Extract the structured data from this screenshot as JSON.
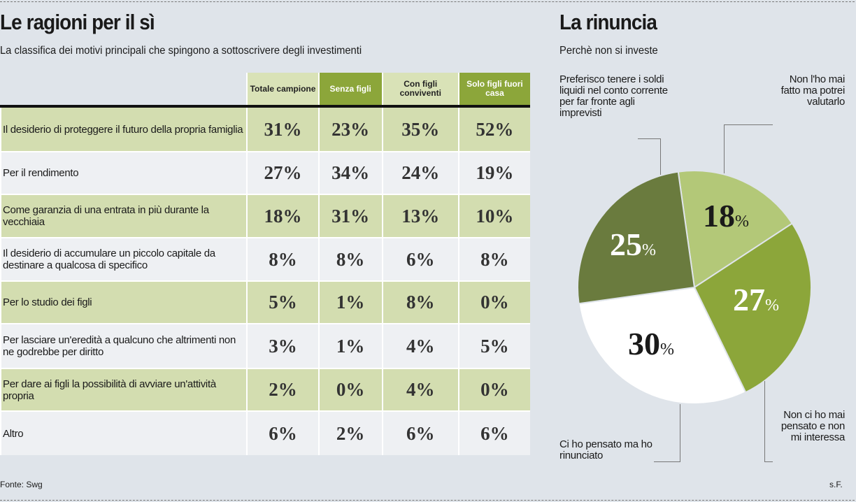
{
  "left": {
    "title": "Le ragioni per il sì",
    "subtitle": "La classifica dei motivi principali che spingono a sottoscrivere degli investimenti"
  },
  "right": {
    "title": "La rinuncia",
    "subtitle": "Perchè non si investe"
  },
  "footer": {
    "source": "Fonte: Swg",
    "credit": "s.F."
  },
  "chart_data": [
    {
      "type": "table",
      "columns": [
        "Totale campione",
        "Senza figli",
        "Con figli conviventi",
        "Solo figli fuori casa"
      ],
      "rows": [
        {
          "label": "Il desiderio di proteggere il futuro della propria famiglia",
          "values": [
            "31%",
            "23%",
            "35%",
            "52%"
          ]
        },
        {
          "label": "Per il rendimento",
          "values": [
            "27%",
            "34%",
            "24%",
            "19%"
          ]
        },
        {
          "label": "Come garanzia di una entrata in più durante la vecchiaia",
          "values": [
            "18%",
            "31%",
            "13%",
            "10%"
          ]
        },
        {
          "label": "Il desiderio di accumulare un piccolo capitale da destinare a qualcosa di specifico",
          "values": [
            "8%",
            "8%",
            "6%",
            "8%"
          ]
        },
        {
          "label": "Per lo studio dei figli",
          "values": [
            "5%",
            "1%",
            "8%",
            "0%"
          ]
        },
        {
          "label": "Per lasciare un'eredità a qualcuno che altrimenti non ne godrebbe per diritto",
          "values": [
            "3%",
            "1%",
            "4%",
            "5%"
          ]
        },
        {
          "label": "Per dare ai figli la possibilità di avviare un'attività propria",
          "values": [
            "2%",
            "0%",
            "4%",
            "0%"
          ]
        },
        {
          "label": "Altro",
          "values": [
            "6%",
            "2%",
            "6%",
            "6%"
          ]
        }
      ]
    },
    {
      "type": "pie",
      "title": "La rinuncia",
      "slices": [
        {
          "label": "Non l'ho mai fatto ma potrei valutarlo",
          "value": 18,
          "display": "18",
          "color": "#b3c878"
        },
        {
          "label": "Non ci ho mai pensato e non mi interessa",
          "value": 27,
          "display": "27",
          "color": "#8ca63a"
        },
        {
          "label": "Ci ho pensato ma ho rinunciato",
          "value": 30,
          "display": "30",
          "color": "#ffffff"
        },
        {
          "label": "Preferisco tenere i soldi liquidi nel conto corrente per far fronte agli imprevisti",
          "value": 25,
          "display": "25",
          "color": "#6a7b3e"
        }
      ],
      "unit": "%"
    }
  ]
}
